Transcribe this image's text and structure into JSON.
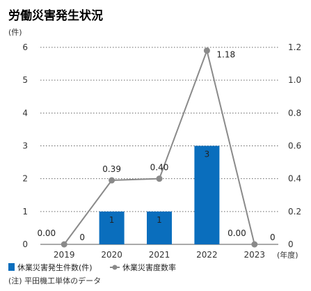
{
  "chart_data": {
    "type": "bar",
    "title": "労働災害発生状況",
    "left_unit": "(件)",
    "x_unit": "(年度)",
    "categories": [
      "2019",
      "2020",
      "2021",
      "2022",
      "2023"
    ],
    "left_axis": {
      "ylim": [
        0,
        6
      ],
      "ticks": [
        "0",
        "1",
        "2",
        "3",
        "4",
        "5",
        "6"
      ]
    },
    "right_axis": {
      "ylim": [
        0,
        1.2
      ],
      "ticks": [
        "0",
        "0.2",
        "0.4",
        "0.6",
        "0.8",
        "1.0",
        "1.2"
      ]
    },
    "series": [
      {
        "name": "休業災害発生件数(件)",
        "type": "bar",
        "axis": "left",
        "color": "#0a6ebd",
        "values": [
          0,
          1,
          1,
          3,
          0
        ],
        "labels": [
          "0",
          "1",
          "1",
          "3",
          "0"
        ]
      },
      {
        "name": "休業災害度数率",
        "type": "line",
        "axis": "right",
        "color": "#8a8a8a",
        "values": [
          0.0,
          0.39,
          0.4,
          1.18,
          0.0
        ],
        "labels": [
          "0.00",
          "0.39",
          "0.40",
          "1.18",
          "0.00"
        ]
      }
    ],
    "legend_position": "bottom-left",
    "grid": "dotted-horizontal",
    "note": "(注) 平田機工単体のデータ"
  }
}
